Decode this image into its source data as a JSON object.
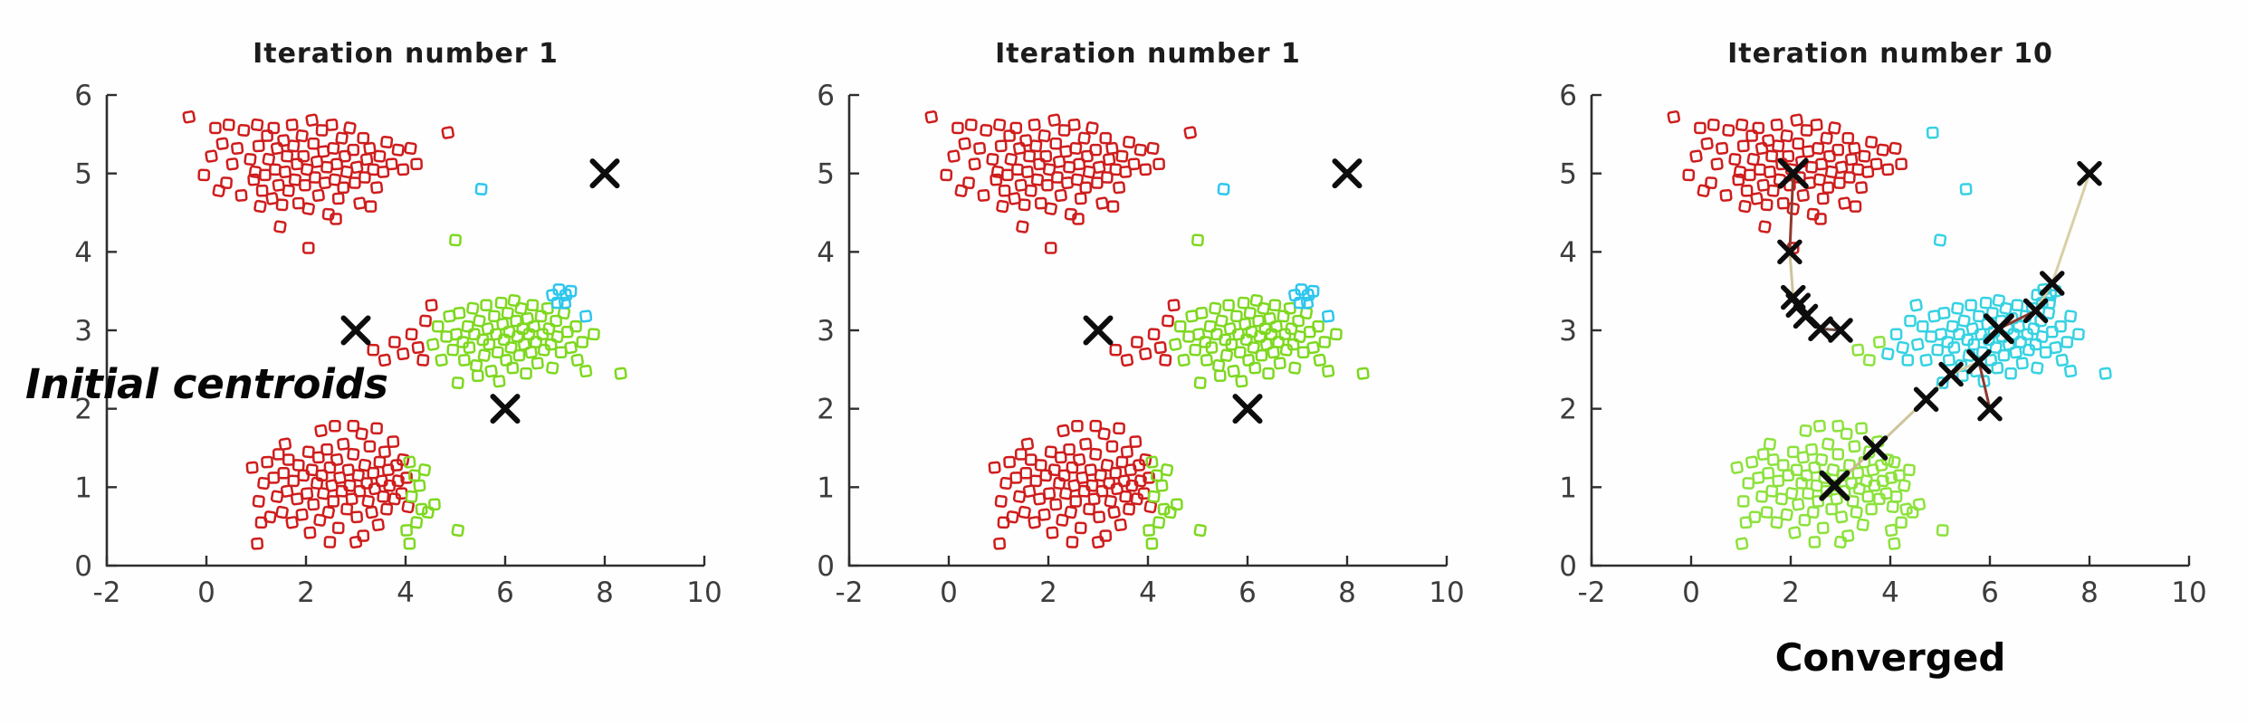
{
  "figure": {
    "background": "#fefefe",
    "kind": "kmeans-clustering-iterations"
  },
  "annotations": {
    "initial_centroids": "Initial centroids",
    "converged": "Converged"
  },
  "point_groups": {
    "top_cluster": [
      [
        -0.35,
        5.72
      ],
      [
        0.18,
        5.58
      ],
      [
        0.1,
        5.22
      ],
      [
        -0.05,
        4.98
      ],
      [
        0.32,
        5.38
      ],
      [
        0.45,
        5.62
      ],
      [
        0.52,
        5.12
      ],
      [
        0.4,
        4.88
      ],
      [
        0.62,
        5.32
      ],
      [
        0.75,
        5.55
      ],
      [
        0.7,
        4.72
      ],
      [
        0.88,
        5.18
      ],
      [
        0.95,
        4.92
      ],
      [
        1.02,
        5.62
      ],
      [
        1.05,
        5.35
      ],
      [
        0.98,
        5.02
      ],
      [
        1.12,
        4.78
      ],
      [
        1.08,
        4.58
      ],
      [
        1.22,
        5.48
      ],
      [
        1.25,
        5.18
      ],
      [
        1.18,
        4.98
      ],
      [
        1.32,
        4.68
      ],
      [
        1.35,
        5.58
      ],
      [
        1.42,
        5.32
      ],
      [
        1.38,
        5.05
      ],
      [
        1.45,
        4.85
      ],
      [
        1.52,
        4.6
      ],
      [
        1.55,
        5.42
      ],
      [
        1.62,
        5.22
      ],
      [
        1.58,
        5.02
      ],
      [
        1.65,
        4.78
      ],
      [
        1.72,
        5.62
      ],
      [
        1.75,
        5.35
      ],
      [
        1.82,
        5.12
      ],
      [
        1.78,
        4.92
      ],
      [
        1.85,
        4.62
      ],
      [
        1.92,
        5.48
      ],
      [
        1.95,
        5.22
      ],
      [
        2.02,
        5.05
      ],
      [
        1.98,
        4.85
      ],
      [
        2.05,
        4.55
      ],
      [
        2.05,
        4.05
      ],
      [
        2.12,
        5.68
      ],
      [
        2.15,
        5.38
      ],
      [
        2.22,
        5.15
      ],
      [
        2.18,
        4.95
      ],
      [
        2.25,
        4.72
      ],
      [
        2.32,
        5.55
      ],
      [
        2.35,
        5.28
      ],
      [
        2.42,
        5.08
      ],
      [
        2.38,
        4.88
      ],
      [
        2.45,
        4.48
      ],
      [
        2.52,
        5.62
      ],
      [
        2.55,
        5.32
      ],
      [
        2.62,
        5.12
      ],
      [
        2.58,
        4.92
      ],
      [
        2.65,
        4.68
      ],
      [
        2.72,
        5.45
      ],
      [
        2.78,
        5.22
      ],
      [
        2.82,
        5.02
      ],
      [
        2.75,
        4.82
      ],
      [
        2.88,
        5.58
      ],
      [
        2.95,
        5.3
      ],
      [
        3.02,
        5.08
      ],
      [
        2.98,
        4.88
      ],
      [
        3.08,
        4.62
      ],
      [
        3.15,
        5.45
      ],
      [
        3.22,
        5.18
      ],
      [
        3.18,
        4.95
      ],
      [
        3.28,
        5.32
      ],
      [
        3.35,
        5.05
      ],
      [
        3.42,
        4.82
      ],
      [
        3.48,
        5.22
      ],
      [
        3.55,
        5.02
      ],
      [
        3.62,
        5.4
      ],
      [
        3.72,
        5.12
      ],
      [
        3.85,
        5.3
      ],
      [
        3.95,
        5.05
      ],
      [
        4.1,
        5.32
      ],
      [
        4.22,
        5.12
      ],
      [
        1.48,
        4.32
      ],
      [
        2.6,
        4.42
      ],
      [
        0.25,
        4.78
      ],
      [
        3.3,
        4.58
      ]
    ],
    "top_right_outlier": [
      [
        4.85,
        5.52
      ]
    ],
    "mid_cluster": [
      [
        4.55,
        2.82
      ],
      [
        4.65,
        3.05
      ],
      [
        4.72,
        2.62
      ],
      [
        4.82,
        2.92
      ],
      [
        4.88,
        3.18
      ],
      [
        4.95,
        2.75
      ],
      [
        5.02,
        2.95
      ],
      [
        5.05,
        2.33
      ],
      [
        5.08,
        3.22
      ],
      [
        5.15,
        2.85
      ],
      [
        5.18,
        2.62
      ],
      [
        5.25,
        3.05
      ],
      [
        5.28,
        2.78
      ],
      [
        5.35,
        3.28
      ],
      [
        5.38,
        2.95
      ],
      [
        5.42,
        2.55
      ],
      [
        5.45,
        2.42
      ],
      [
        5.48,
        3.12
      ],
      [
        5.55,
        2.88
      ],
      [
        5.58,
        2.68
      ],
      [
        5.62,
        3.32
      ],
      [
        5.65,
        3.02
      ],
      [
        5.68,
        2.82
      ],
      [
        5.72,
        2.48
      ],
      [
        5.78,
        3.18
      ],
      [
        5.82,
        2.95
      ],
      [
        5.85,
        2.72
      ],
      [
        5.88,
        2.35
      ],
      [
        5.92,
        3.35
      ],
      [
        5.95,
        3.08
      ],
      [
        5.98,
        2.88
      ],
      [
        6.02,
        2.62
      ],
      [
        6.05,
        3.22
      ],
      [
        6.08,
        2.98
      ],
      [
        6.12,
        2.78
      ],
      [
        6.15,
        2.52
      ],
      [
        6.18,
        3.38
      ],
      [
        6.22,
        3.12
      ],
      [
        6.25,
        2.92
      ],
      [
        6.28,
        2.68
      ],
      [
        6.32,
        3.28
      ],
      [
        6.35,
        3.02
      ],
      [
        6.38,
        2.82
      ],
      [
        6.42,
        2.45
      ],
      [
        6.45,
        3.15
      ],
      [
        6.48,
        2.95
      ],
      [
        6.52,
        2.72
      ],
      [
        6.55,
        3.32
      ],
      [
        6.58,
        3.05
      ],
      [
        6.62,
        2.85
      ],
      [
        6.65,
        2.58
      ],
      [
        6.72,
        3.18
      ],
      [
        6.75,
        2.95
      ],
      [
        6.78,
        2.75
      ],
      [
        6.85,
        3.28
      ],
      [
        6.88,
        3.02
      ],
      [
        6.92,
        2.82
      ],
      [
        6.95,
        2.52
      ],
      [
        7.02,
        3.12
      ],
      [
        7.05,
        2.92
      ],
      [
        7.12,
        2.72
      ],
      [
        7.18,
        3.22
      ],
      [
        7.25,
        2.98
      ],
      [
        7.32,
        2.78
      ],
      [
        7.42,
        3.05
      ],
      [
        7.45,
        2.62
      ],
      [
        7.55,
        2.85
      ],
      [
        7.62,
        2.48
      ],
      [
        7.78,
        2.95
      ],
      [
        8.32,
        2.45
      ]
    ],
    "mid_ne_cyan": [
      [
        6.95,
        3.45
      ],
      [
        7.08,
        3.52
      ],
      [
        7.22,
        3.45
      ],
      [
        7.05,
        3.35
      ],
      [
        7.2,
        3.35
      ],
      [
        7.32,
        3.5
      ]
    ],
    "mid_right_cyan": [
      [
        7.62,
        3.18
      ]
    ],
    "cyan_high_outlier": [
      [
        5.52,
        4.8
      ]
    ],
    "green_high_outlier": [
      [
        5.0,
        4.15
      ]
    ],
    "mid_left_fringe_inner": [
      [
        3.35,
        2.75
      ],
      [
        3.58,
        2.62
      ],
      [
        3.78,
        2.85
      ]
    ],
    "mid_left_fringe_outer": [
      [
        3.95,
        2.7
      ],
      [
        4.12,
        2.95
      ],
      [
        4.25,
        2.78
      ],
      [
        4.4,
        3.12
      ],
      [
        4.52,
        3.32
      ],
      [
        4.35,
        2.62
      ]
    ],
    "bottom_cluster": [
      [
        0.92,
        1.25
      ],
      [
        1.05,
        0.82
      ],
      [
        1.02,
        0.28
      ],
      [
        1.15,
        1.05
      ],
      [
        1.22,
        1.32
      ],
      [
        1.28,
        0.62
      ],
      [
        1.35,
        1.12
      ],
      [
        1.42,
        0.88
      ],
      [
        1.45,
        1.42
      ],
      [
        1.52,
        0.68
      ],
      [
        1.55,
        1.18
      ],
      [
        1.62,
        0.95
      ],
      [
        1.65,
        1.35
      ],
      [
        1.72,
        0.55
      ],
      [
        1.75,
        1.08
      ],
      [
        1.82,
        0.85
      ],
      [
        1.85,
        1.28
      ],
      [
        1.92,
        0.65
      ],
      [
        1.95,
        1.15
      ],
      [
        2.02,
        0.92
      ],
      [
        2.05,
        1.45
      ],
      [
        2.08,
        0.42
      ],
      [
        2.12,
        1.22
      ],
      [
        2.15,
        0.78
      ],
      [
        2.22,
        1.05
      ],
      [
        2.25,
        1.38
      ],
      [
        2.28,
        0.58
      ],
      [
        2.32,
        1.15
      ],
      [
        2.35,
        0.92
      ],
      [
        2.42,
        1.48
      ],
      [
        2.45,
        0.68
      ],
      [
        2.48,
        1.25
      ],
      [
        2.52,
        1.02
      ],
      [
        2.55,
        0.82
      ],
      [
        2.62,
        1.35
      ],
      [
        2.65,
        0.48
      ],
      [
        2.68,
        1.12
      ],
      [
        2.72,
        0.95
      ],
      [
        2.75,
        1.55
      ],
      [
        2.82,
        0.72
      ],
      [
        2.85,
        1.22
      ],
      [
        2.88,
        1.02
      ],
      [
        2.92,
        0.85
      ],
      [
        2.95,
        1.42
      ],
      [
        3.02,
        0.62
      ],
      [
        3.05,
        1.15
      ],
      [
        3.08,
        0.95
      ],
      [
        3.12,
        1.68
      ],
      [
        3.15,
        0.38
      ],
      [
        3.18,
        1.28
      ],
      [
        3.22,
        1.05
      ],
      [
        3.25,
        0.82
      ],
      [
        3.28,
        1.52
      ],
      [
        3.32,
        0.68
      ],
      [
        3.35,
        1.18
      ],
      [
        3.38,
        0.98
      ],
      [
        3.42,
        1.75
      ],
      [
        3.45,
        0.52
      ],
      [
        3.48,
        1.32
      ],
      [
        3.52,
        1.08
      ],
      [
        3.55,
        0.88
      ],
      [
        3.58,
        1.45
      ],
      [
        3.62,
        0.72
      ],
      [
        3.65,
        1.22
      ],
      [
        3.68,
        1.02
      ],
      [
        3.75,
        1.58
      ],
      [
        3.78,
        0.85
      ],
      [
        3.82,
        1.28
      ],
      [
        3.85,
        1.08
      ],
      [
        3.92,
        0.92
      ],
      [
        3.95,
        1.35
      ],
      [
        4.02,
        1.12
      ],
      [
        4.05,
        0.75
      ],
      [
        2.58,
        1.78
      ],
      [
        2.3,
        1.72
      ],
      [
        2.95,
        1.78
      ],
      [
        1.58,
        1.55
      ],
      [
        1.1,
        0.55
      ],
      [
        3.0,
        0.3
      ],
      [
        2.48,
        0.3
      ]
    ],
    "bottom_right_fringe": [
      [
        4.08,
        1.32
      ],
      [
        4.18,
        1.15
      ],
      [
        4.28,
        1.02
      ],
      [
        4.12,
        0.88
      ],
      [
        4.32,
        0.72
      ],
      [
        4.22,
        0.55
      ],
      [
        4.02,
        0.45
      ],
      [
        4.45,
        0.68
      ],
      [
        4.58,
        0.78
      ],
      [
        5.05,
        0.45
      ],
      [
        4.08,
        0.28
      ],
      [
        4.38,
        1.22
      ]
    ]
  },
  "chart_data": [
    {
      "type": "scatter",
      "title": "Iteration number 1",
      "xlim": [
        -2,
        10
      ],
      "ylim": [
        0,
        6
      ],
      "xticks": [
        -2,
        0,
        2,
        4,
        6,
        8,
        10
      ],
      "yticks": [
        0,
        1,
        2,
        3,
        4,
        5,
        6
      ],
      "grid": false,
      "axis_color": "#2e2e2e",
      "marker": "square-open",
      "series": [
        {
          "name": "cluster-red",
          "color": "#cf1c1c",
          "groups": [
            "top_cluster",
            "top_right_outlier",
            "mid_left_fringe_inner",
            "mid_left_fringe_outer",
            "bottom_cluster"
          ]
        },
        {
          "name": "cluster-green",
          "color": "#7ed81f",
          "groups": [
            "mid_cluster",
            "green_high_outlier",
            "bottom_right_fringe"
          ]
        },
        {
          "name": "cluster-cyan",
          "color": "#2cc6ee",
          "groups": [
            "mid_ne_cyan",
            "mid_right_cyan",
            "cyan_high_outlier"
          ]
        }
      ],
      "centroids": {
        "marker": "x",
        "color": "#0d0d0d",
        "size": 27,
        "points": [
          [
            8,
            5
          ],
          [
            3,
            3
          ],
          [
            6,
            2
          ]
        ]
      },
      "trajectories": []
    },
    {
      "type": "scatter",
      "title": "Iteration number 1",
      "xlim": [
        -2,
        10
      ],
      "ylim": [
        0,
        6
      ],
      "xticks": [
        -2,
        0,
        2,
        4,
        6,
        8,
        10
      ],
      "yticks": [
        0,
        1,
        2,
        3,
        4,
        5,
        6
      ],
      "grid": false,
      "axis_color": "#2e2e2e",
      "marker": "square-open",
      "series": [
        {
          "name": "cluster-red",
          "color": "#cf1c1c",
          "groups": [
            "top_cluster",
            "top_right_outlier",
            "mid_left_fringe_inner",
            "mid_left_fringe_outer",
            "bottom_cluster"
          ]
        },
        {
          "name": "cluster-green",
          "color": "#7ed81f",
          "groups": [
            "mid_cluster",
            "green_high_outlier",
            "bottom_right_fringe"
          ]
        },
        {
          "name": "cluster-cyan",
          "color": "#2cc6ee",
          "groups": [
            "mid_ne_cyan",
            "mid_right_cyan",
            "cyan_high_outlier"
          ]
        }
      ],
      "centroids": {
        "marker": "x",
        "color": "#0d0d0d",
        "size": 27,
        "points": [
          [
            8,
            5
          ],
          [
            3,
            3
          ],
          [
            6,
            2
          ]
        ]
      },
      "trajectories": []
    },
    {
      "type": "scatter",
      "title": "Iteration number 10",
      "xlim": [
        -2,
        10
      ],
      "ylim": [
        0,
        6
      ],
      "xticks": [
        -2,
        0,
        2,
        4,
        6,
        8,
        10
      ],
      "yticks": [
        0,
        1,
        2,
        3,
        4,
        5,
        6
      ],
      "grid": false,
      "axis_color": "#2e2e2e",
      "marker": "square-open",
      "series": [
        {
          "name": "cluster-red",
          "color": "#cf1c1c",
          "groups": [
            "top_cluster"
          ]
        },
        {
          "name": "cluster-cyan",
          "color": "#35d2e2",
          "groups": [
            "mid_cluster",
            "mid_ne_cyan",
            "mid_right_cyan",
            "cyan_high_outlier",
            "green_high_outlier",
            "top_right_outlier",
            "mid_left_fringe_outer"
          ]
        },
        {
          "name": "cluster-green",
          "color": "#8ce23c",
          "groups": [
            "bottom_cluster",
            "bottom_right_fringe",
            "mid_left_fringe_inner"
          ]
        }
      ],
      "centroids": {
        "marker": "x",
        "color": "#0d0d0d",
        "size": 28,
        "points": [
          [
            2.05,
            5.0
          ],
          [
            6.18,
            3.02
          ],
          [
            2.88,
            1.02
          ]
        ]
      },
      "path_marker_size": 22,
      "trajectories": [
        {
          "name": "red-centroid-path",
          "color": "#6a5048",
          "segment_colors": [
            "#6a5048",
            "#6a5048",
            "#6a5048",
            "#6a5048",
            "#cfc49c",
            "#8e3a2e"
          ],
          "points": [
            [
              3.0,
              3.0
            ],
            [
              2.6,
              3.02
            ],
            [
              2.3,
              3.18
            ],
            [
              2.15,
              3.32
            ],
            [
              2.05,
              3.42
            ],
            [
              1.98,
              4.0
            ],
            [
              2.05,
              5.0
            ]
          ]
        },
        {
          "name": "cyan-centroid-path",
          "color": "#d9cfa6",
          "segment_colors": [
            "#d9cfa6",
            "#d9cfa6",
            "#8e3a2e"
          ],
          "points": [
            [
              8.0,
              5.0
            ],
            [
              7.25,
              3.6
            ],
            [
              6.92,
              3.25
            ],
            [
              6.18,
              3.02
            ]
          ]
        },
        {
          "name": "green-centroid-path",
          "color": "#d9cfa6",
          "segment_colors": [
            "#8e3a2e",
            "#d9cfa6",
            "#d9cfa6",
            "#cfc49c",
            "#c9b98e"
          ],
          "points": [
            [
              6.0,
              2.0
            ],
            [
              5.78,
              2.6
            ],
            [
              5.22,
              2.44
            ],
            [
              4.72,
              2.12
            ],
            [
              3.7,
              1.5
            ],
            [
              2.88,
              1.02
            ]
          ]
        }
      ]
    }
  ]
}
